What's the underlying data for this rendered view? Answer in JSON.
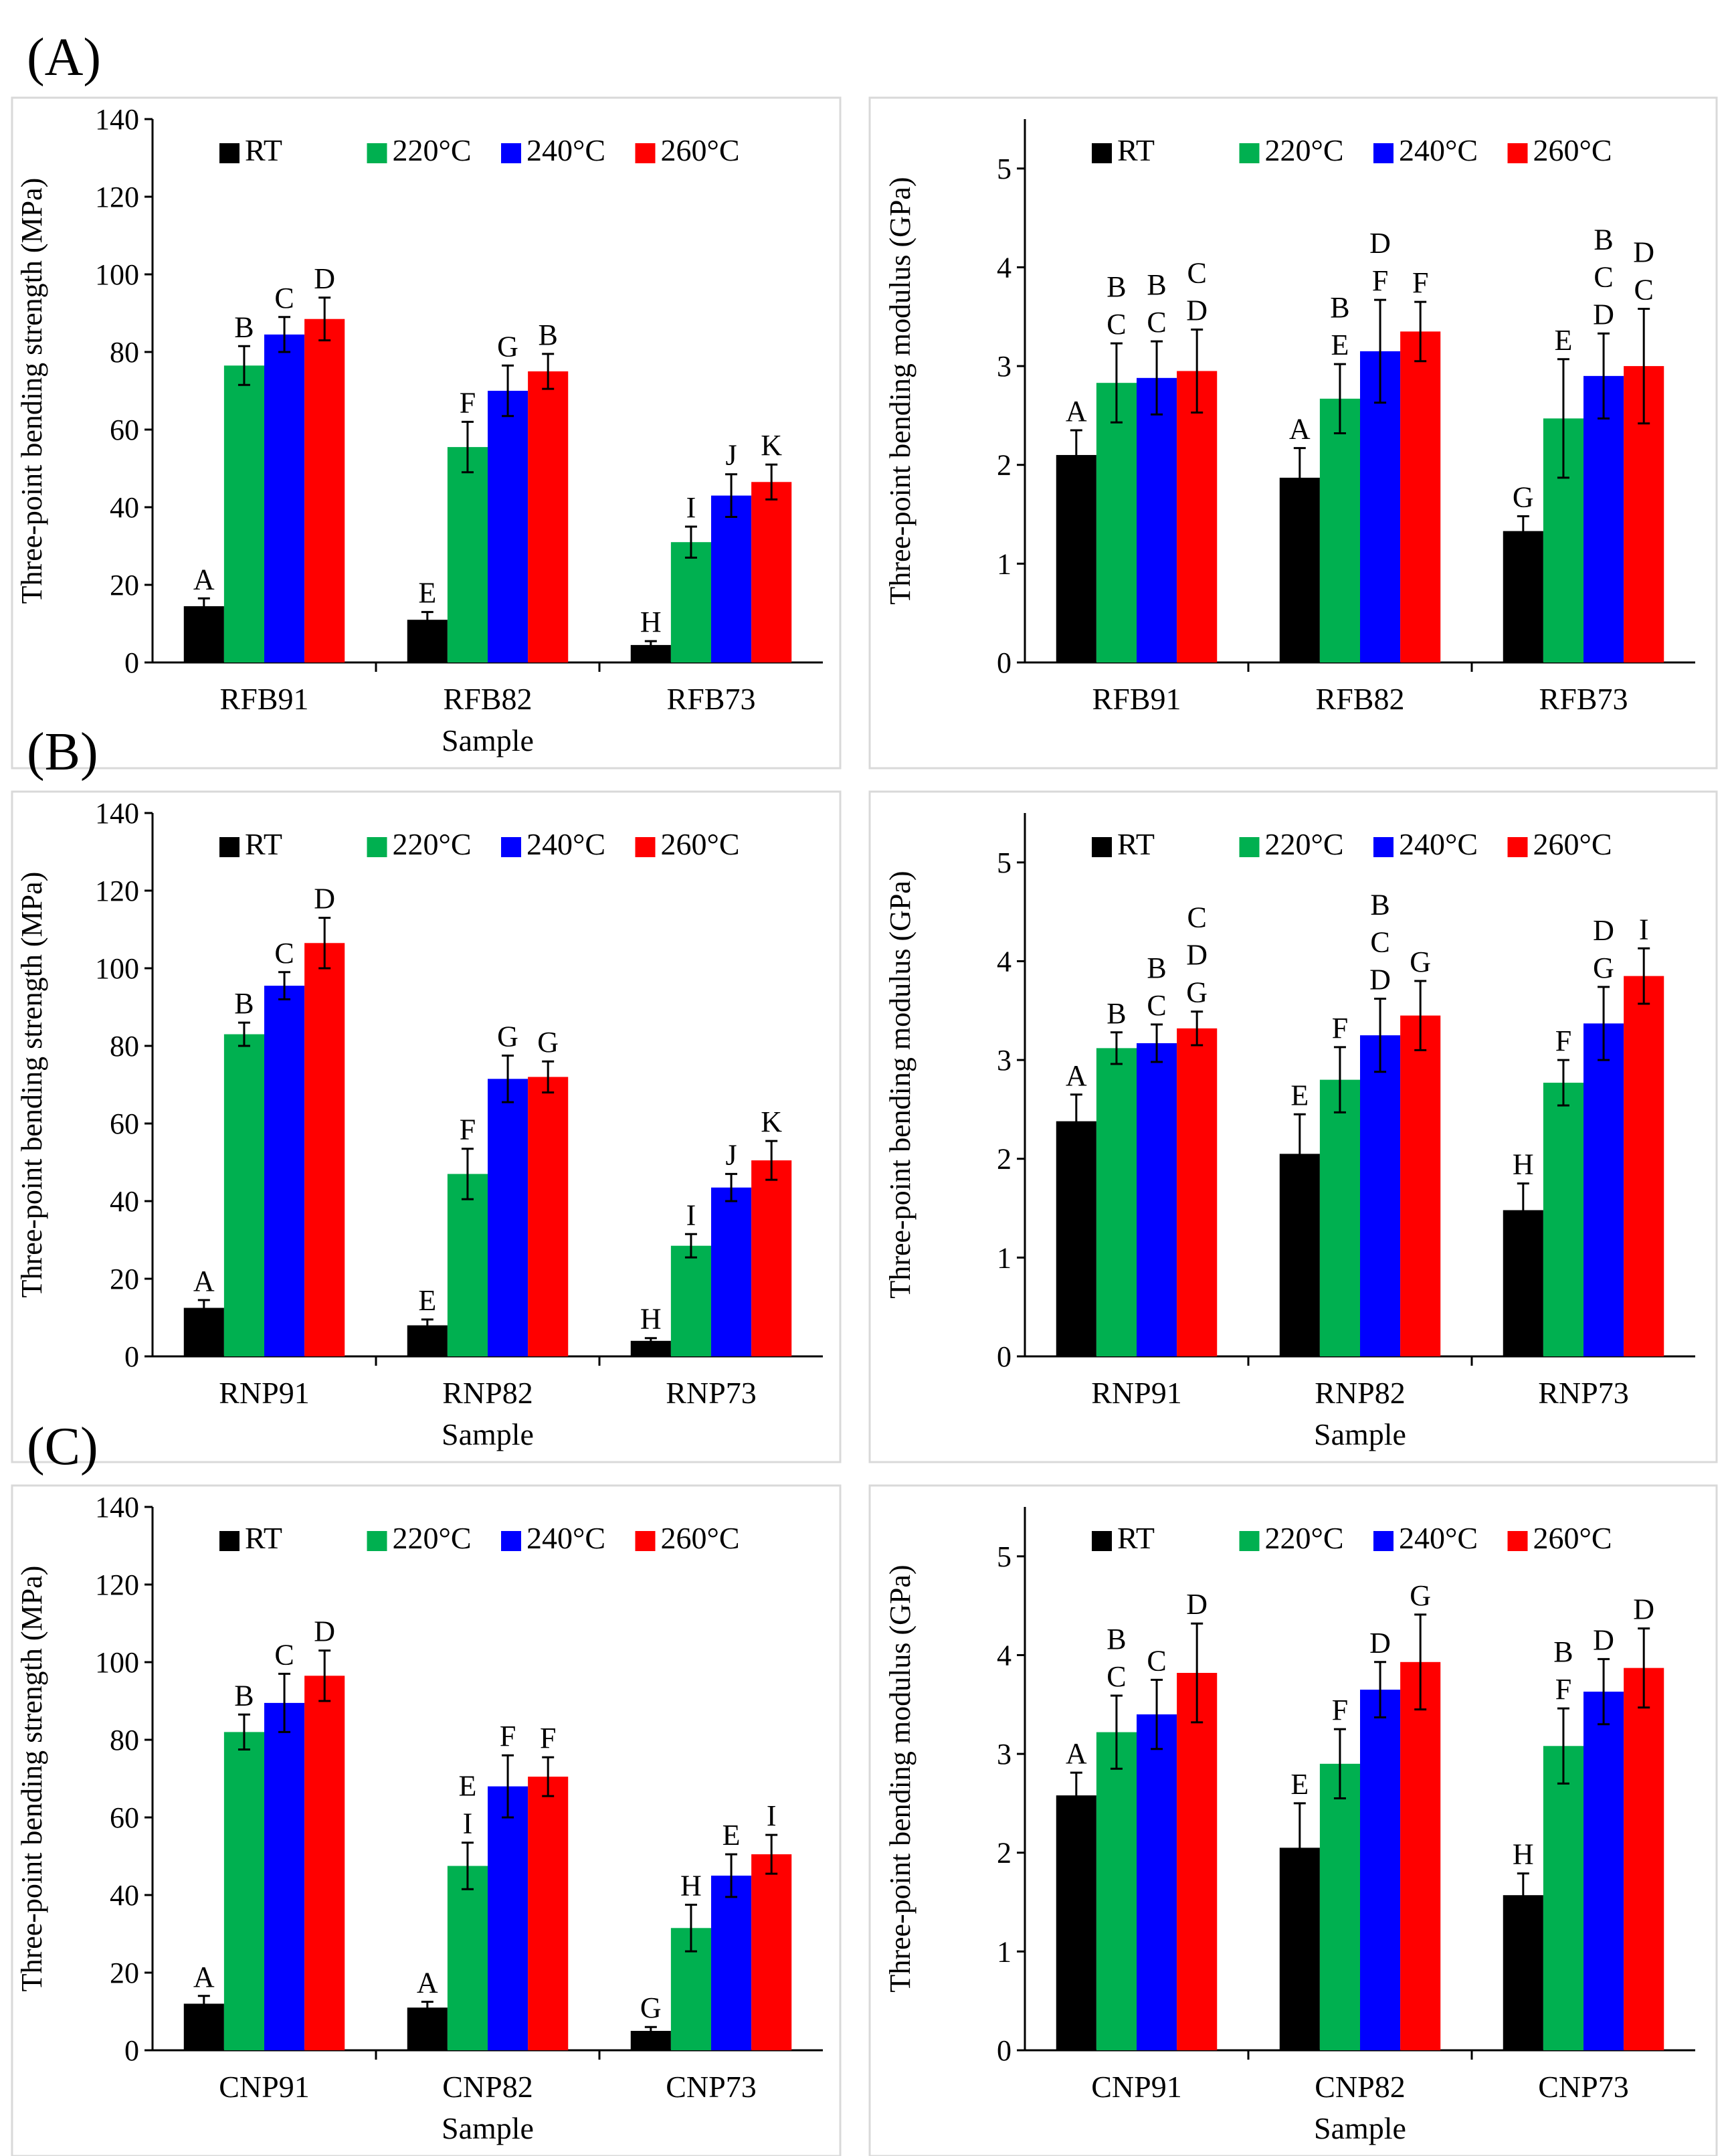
{
  "figure": {
    "rows": [
      {
        "label": "(A)",
        "charts": [
          {
            "type": "bar",
            "ylabel": "Three-point bending strength (MPa)",
            "xlabel": "Sample",
            "ylim": [
              0,
              140
            ],
            "yticks": [
              0,
              20,
              40,
              60,
              80,
              100,
              120,
              140
            ],
            "categories": [
              "RFB91",
              "RFB82",
              "RFB73"
            ],
            "series": [
              {
                "name": "RT",
                "color": "#000000",
                "values": [
                  14.5,
                  11,
                  4.5
                ],
                "errors": [
                  2,
                  2,
                  1
                ],
                "letters": [
                  "A",
                  "E",
                  "H"
                ]
              },
              {
                "name": "220°C",
                "color": "#00b050",
                "values": [
                  76.5,
                  55.5,
                  31
                ],
                "errors": [
                  5,
                  6.5,
                  4
                ],
                "letters": [
                  "B",
                  "F",
                  "I"
                ]
              },
              {
                "name": "240°C",
                "color": "#0000ff",
                "values": [
                  84.5,
                  70,
                  43
                ],
                "errors": [
                  4.5,
                  6.5,
                  5.5
                ],
                "letters": [
                  "C",
                  "G",
                  "J"
                ]
              },
              {
                "name": "260°C",
                "color": "#ff0000",
                "values": [
                  88.5,
                  75,
                  46.5
                ],
                "errors": [
                  5.5,
                  4.5,
                  4.5
                ],
                "letters": [
                  "D",
                  "B",
                  "K"
                ]
              }
            ]
          },
          {
            "type": "bar",
            "ylabel": "Three-point bending modulus (GPa)",
            "xlabel": "",
            "ylim": [
              0,
              5.5
            ],
            "yticks": [
              0,
              1,
              2,
              3,
              4,
              5
            ],
            "categories": [
              "RFB91",
              "RFB82",
              "RFB73"
            ],
            "series": [
              {
                "name": "RT",
                "color": "#000000",
                "values": [
                  2.1,
                  1.87,
                  1.33
                ],
                "errors": [
                  0.25,
                  0.3,
                  0.15
                ],
                "letters": [
                  "A",
                  "A",
                  "G"
                ]
              },
              {
                "name": "220°C",
                "color": "#00b050",
                "values": [
                  2.83,
                  2.67,
                  2.47
                ],
                "errors": [
                  0.4,
                  0.35,
                  0.6
                ],
                "letters": [
                  "B C",
                  "B E",
                  "E"
                ]
              },
              {
                "name": "240°C",
                "color": "#0000ff",
                "values": [
                  2.88,
                  3.15,
                  2.9
                ],
                "errors": [
                  0.37,
                  0.52,
                  0.43
                ],
                "letters": [
                  "B C",
                  "D F",
                  "B C D"
                ]
              },
              {
                "name": "260°C",
                "color": "#ff0000",
                "values": [
                  2.95,
                  3.35,
                  3.0
                ],
                "errors": [
                  0.42,
                  0.3,
                  0.58
                ],
                "letters": [
                  "C D",
                  "F",
                  "D C"
                ]
              }
            ]
          }
        ]
      },
      {
        "label": "(B)",
        "charts": [
          {
            "type": "bar",
            "ylabel": "Three-point bending strength (MPa)",
            "xlabel": "Sample",
            "ylim": [
              0,
              140
            ],
            "yticks": [
              0,
              20,
              40,
              60,
              80,
              100,
              120,
              140
            ],
            "categories": [
              "RNP91",
              "RNP82",
              "RNP73"
            ],
            "series": [
              {
                "name": "RT",
                "color": "#000000",
                "values": [
                  12.5,
                  8,
                  4
                ],
                "errors": [
                  2,
                  1.5,
                  0.7
                ],
                "letters": [
                  "A",
                  "E",
                  "H"
                ]
              },
              {
                "name": "220°C",
                "color": "#00b050",
                "values": [
                  83,
                  47,
                  28.5
                ],
                "errors": [
                  3,
                  6.5,
                  3
                ],
                "letters": [
                  "B",
                  "F",
                  "I"
                ]
              },
              {
                "name": "240°C",
                "color": "#0000ff",
                "values": [
                  95.5,
                  71.5,
                  43.5
                ],
                "errors": [
                  3.5,
                  6,
                  3.5
                ],
                "letters": [
                  "C",
                  "G",
                  "J"
                ]
              },
              {
                "name": "260°C",
                "color": "#ff0000",
                "values": [
                  106.5,
                  72,
                  50.5
                ],
                "errors": [
                  6.5,
                  4,
                  5
                ],
                "letters": [
                  "D",
                  "G",
                  "K"
                ]
              }
            ]
          },
          {
            "type": "bar",
            "ylabel": "Three-point bending modulus (GPa)",
            "xlabel": "Sample",
            "ylim": [
              0,
              5.5
            ],
            "yticks": [
              0,
              1,
              2,
              3,
              4,
              5
            ],
            "categories": [
              "RNP91",
              "RNP82",
              "RNP73"
            ],
            "series": [
              {
                "name": "RT",
                "color": "#000000",
                "values": [
                  2.38,
                  2.05,
                  1.48
                ],
                "errors": [
                  0.27,
                  0.4,
                  0.27
                ],
                "letters": [
                  "A",
                  "E",
                  "H"
                ]
              },
              {
                "name": "220°C",
                "color": "#00b050",
                "values": [
                  3.12,
                  2.8,
                  2.77
                ],
                "errors": [
                  0.16,
                  0.33,
                  0.23
                ],
                "letters": [
                  "B",
                  "F",
                  "F"
                ]
              },
              {
                "name": "240°C",
                "color": "#0000ff",
                "values": [
                  3.17,
                  3.25,
                  3.37
                ],
                "errors": [
                  0.19,
                  0.37,
                  0.37
                ],
                "letters": [
                  "B C",
                  "B C D",
                  "D G"
                ]
              },
              {
                "name": "260°C",
                "color": "#ff0000",
                "values": [
                  3.32,
                  3.45,
                  3.85
                ],
                "errors": [
                  0.17,
                  0.35,
                  0.28
                ],
                "letters": [
                  "C D G",
                  "G",
                  "I"
                ]
              }
            ]
          }
        ]
      },
      {
        "label": "(C)",
        "charts": [
          {
            "type": "bar",
            "ylabel": "Three-point bending strength (MPa)",
            "xlabel": "Sample",
            "ylim": [
              0,
              140
            ],
            "yticks": [
              0,
              20,
              40,
              60,
              80,
              100,
              120,
              140
            ],
            "categories": [
              "CNP91",
              "CNP82",
              "CNP73"
            ],
            "series": [
              {
                "name": "RT",
                "color": "#000000",
                "values": [
                  12,
                  11,
                  5
                ],
                "errors": [
                  2,
                  1.5,
                  1
                ],
                "letters": [
                  "A",
                  "A",
                  "G"
                ]
              },
              {
                "name": "220°C",
                "color": "#00b050",
                "values": [
                  82,
                  47.5,
                  31.5
                ],
                "errors": [
                  4.5,
                  6,
                  6
                ],
                "letters": [
                  "B",
                  "E I",
                  "H"
                ]
              },
              {
                "name": "240°C",
                "color": "#0000ff",
                "values": [
                  89.5,
                  68,
                  45
                ],
                "errors": [
                  7.5,
                  8,
                  5.5
                ],
                "letters": [
                  "C",
                  "F",
                  "E"
                ]
              },
              {
                "name": "260°C",
                "color": "#ff0000",
                "values": [
                  96.5,
                  70.5,
                  50.5
                ],
                "errors": [
                  6.5,
                  5,
                  5
                ],
                "letters": [
                  "D",
                  "F",
                  "I"
                ]
              }
            ]
          },
          {
            "type": "bar",
            "ylabel": "Three-point bending modulus (GPa)",
            "xlabel": "Sample",
            "ylim": [
              0,
              5.5
            ],
            "yticks": [
              0,
              1,
              2,
              3,
              4,
              5
            ],
            "categories": [
              "CNP91",
              "CNP82",
              "CNP73"
            ],
            "series": [
              {
                "name": "RT",
                "color": "#000000",
                "values": [
                  2.58,
                  2.05,
                  1.57
                ],
                "errors": [
                  0.23,
                  0.45,
                  0.22
                ],
                "letters": [
                  "A",
                  "E",
                  "H"
                ]
              },
              {
                "name": "220°C",
                "color": "#00b050",
                "values": [
                  3.22,
                  2.9,
                  3.08
                ],
                "errors": [
                  0.37,
                  0.35,
                  0.38
                ],
                "letters": [
                  "B C",
                  "F",
                  "B F"
                ]
              },
              {
                "name": "240°C",
                "color": "#0000ff",
                "values": [
                  3.4,
                  3.65,
                  3.63
                ],
                "errors": [
                  0.35,
                  0.28,
                  0.33
                ],
                "letters": [
                  "C",
                  "D",
                  "D"
                ]
              },
              {
                "name": "260°C",
                "color": "#ff0000",
                "values": [
                  3.82,
                  3.93,
                  3.87
                ],
                "errors": [
                  0.5,
                  0.48,
                  0.4
                ],
                "letters": [
                  "D",
                  "G",
                  "D"
                ]
              }
            ]
          }
        ]
      }
    ]
  }
}
